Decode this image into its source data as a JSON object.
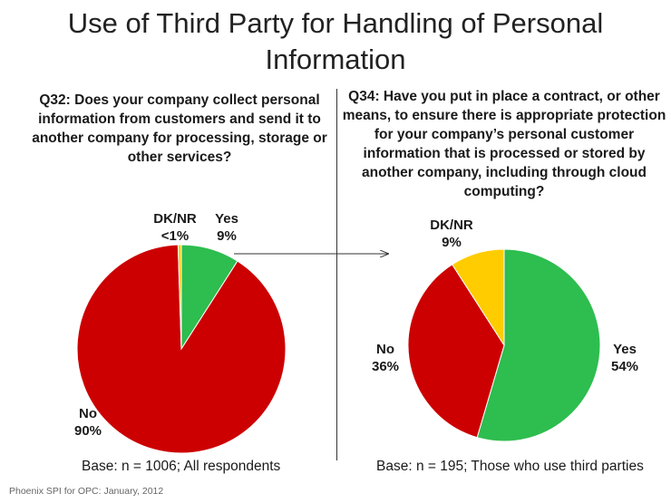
{
  "title": "Use of Third Party for Handling of Personal Information",
  "questions": {
    "q32": {
      "id": "Q32:",
      "text": " Does your company collect personal information from customers and send it to another company for processing, storage or other services?"
    },
    "q34": {
      "id": "Q34:",
      "text": " Have you put in place a contract, or other means, to ensure there is appropriate protection for your company’s personal customer information that is processed or stored by another company, including through cloud computing?"
    }
  },
  "chart_data": [
    {
      "type": "pie",
      "slices": [
        {
          "label": "Yes",
          "value": 9,
          "display": "9%",
          "color": "#2ebd4f"
        },
        {
          "label": "No",
          "value": 90,
          "display": "90%",
          "color": "#cc0000"
        },
        {
          "label": "DK/NR",
          "value": 0.5,
          "display": "<1%",
          "color": "#ffcc00"
        }
      ],
      "base": "Base: n = 1006; All respondents"
    },
    {
      "type": "pie",
      "slices": [
        {
          "label": "Yes",
          "value": 54,
          "display": "54%",
          "color": "#2ebd4f"
        },
        {
          "label": "No",
          "value": 36,
          "display": "36%",
          "color": "#cc0000"
        },
        {
          "label": "DK/NR",
          "value": 9,
          "display": "9%",
          "color": "#ffcc00"
        }
      ],
      "base": "Base: n = 195; Those who use third parties"
    }
  ],
  "footer": "Phoenix SPI for OPC: January, 2012"
}
